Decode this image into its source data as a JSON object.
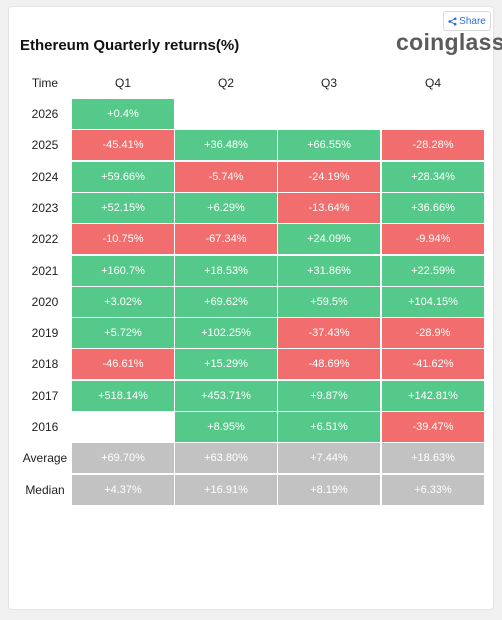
{
  "share_label": "Share",
  "title": "Ethereum Quarterly returns(%)",
  "brand": "coinglass",
  "header": [
    "Time",
    "Q1",
    "Q2",
    "Q3",
    "Q4"
  ],
  "colors": {
    "positive": "#55c98a",
    "negative": "#f26d6d",
    "stat": "#c2c2c2"
  },
  "rows": [
    {
      "label": "2026",
      "cells": [
        "+0.4%",
        "",
        "",
        ""
      ]
    },
    {
      "label": "2025",
      "cells": [
        "-45.41%",
        "+36.48%",
        "+66.55%",
        "-28.28%"
      ]
    },
    {
      "label": "2024",
      "cells": [
        "+59.66%",
        "-5.74%",
        "-24.19%",
        "+28.34%"
      ]
    },
    {
      "label": "2023",
      "cells": [
        "+52.15%",
        "+6.29%",
        "-13.64%",
        "+36.66%"
      ]
    },
    {
      "label": "2022",
      "cells": [
        "-10.75%",
        "-67.34%",
        "+24.09%",
        "-9.94%"
      ]
    },
    {
      "label": "2021",
      "cells": [
        "+160.7%",
        "+18.53%",
        "+31.86%",
        "+22.59%"
      ]
    },
    {
      "label": "2020",
      "cells": [
        "+3.02%",
        "+69.62%",
        "+59.5%",
        "+104.15%"
      ]
    },
    {
      "label": "2019",
      "cells": [
        "+5.72%",
        "+102.25%",
        "-37.43%",
        "-28.9%"
      ]
    },
    {
      "label": "2018",
      "cells": [
        "-46.61%",
        "+15.29%",
        "-48.69%",
        "-41.62%"
      ]
    },
    {
      "label": "2017",
      "cells": [
        "+518.14%",
        "+453.71%",
        "+9.87%",
        "+142.81%"
      ]
    },
    {
      "label": "2016",
      "cells": [
        "",
        "+8.95%",
        "+6.51%",
        "-39.47%"
      ]
    }
  ],
  "stats": [
    {
      "label": "Average",
      "cells": [
        "+69.70%",
        "+63.80%",
        "+7.44%",
        "+18.63%"
      ]
    },
    {
      "label": "Median",
      "cells": [
        "+4.37%",
        "+16.91%",
        "+8.19%",
        "+6.33%"
      ]
    }
  ]
}
